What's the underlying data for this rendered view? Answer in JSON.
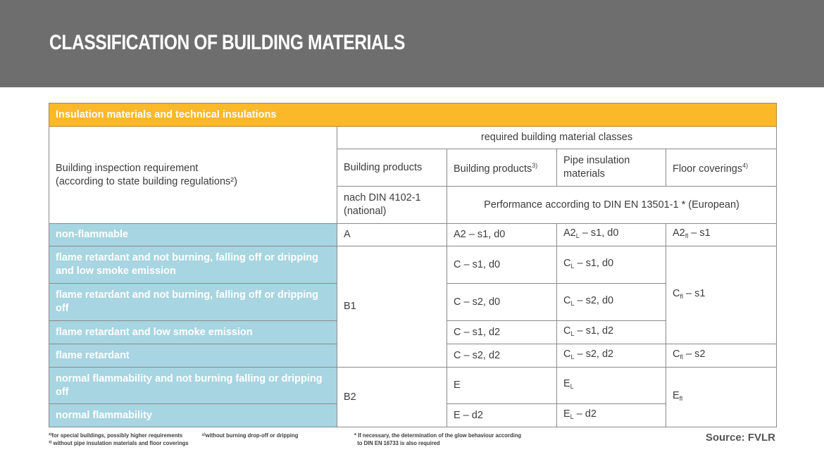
{
  "title": "CLASSIFICATION OF BUILDING MATERIALS",
  "section": "Insulation materials and technical insulations",
  "header": {
    "requirement_l1": "Building inspection requirement",
    "requirement_l2": "(according to state building regulations²)",
    "required_classes": "required building material classes",
    "col1": "Building products",
    "col2": "Building products",
    "col2_sup": "3)",
    "col3": "Pipe insulation materials",
    "col4": "Floor coverings",
    "col4_sup": "4)",
    "national": "nach DIN 4102-1 (national)",
    "european": "Performance according to DIN EN 13501-1 * (European)"
  },
  "rows": [
    {
      "label": "non-flammable",
      "nat": "A",
      "c2": "A2 – s1, d0",
      "c3b": "A2",
      "c3s": "L",
      "c3r": " – s1, d0",
      "c4b": "A2",
      "c4s": "fl",
      "c4r": " – s1"
    },
    {
      "label": "flame retardant and not burning, falling off or dripping and low smoke emission",
      "nat": "B1",
      "c2": "C – s1, d0",
      "c3b": "C",
      "c3s": "L",
      "c3r": " – s1, d0",
      "c4b": "C",
      "c4s": "fl",
      "c4r": " – s1"
    },
    {
      "label": "flame retardant and not burning, falling off or dripping off",
      "c2": "C – s2, d0",
      "c3b": "C",
      "c3s": "L",
      "c3r": " – s2, d0"
    },
    {
      "label": "flame retardant and low smoke emission",
      "c2": "C – s1, d2",
      "c3b": "C",
      "c3s": "L",
      "c3r": " – s1, d2"
    },
    {
      "label": "flame retardant",
      "c2": "C – s2, d2",
      "c3b": "C",
      "c3s": "L",
      "c3r": " – s2, d2",
      "c4b": "C",
      "c4s": "fl",
      "c4r": " – s2"
    },
    {
      "label": "normal flammability and not burning falling or dripping off",
      "nat": "B2",
      "c2": "E",
      "c3b": "E",
      "c3s": "L",
      "c3r": "",
      "c4b": "E",
      "c4s": "fl",
      "c4r": ""
    },
    {
      "label": "normal flammability",
      "c2": "E – d2",
      "c3b": "E",
      "c3s": "L",
      "c3r": " – d2"
    }
  ],
  "footnotes": {
    "f2": "²⁾for special buildings, possibly higher requirements",
    "f3": "³⁾ without pipe insulation materials and floor coverings",
    "f4": "⁴⁾without burning drop-off or dripping",
    "star1": "* If necessary, the determination of the glow behaviour according",
    "star2": "to DIN EN 16733 is also required"
  },
  "source": "Source: FVLR",
  "colors": {
    "banner": "#6e6e6e",
    "section": "#fbb829",
    "row_label": "#a7d5e1"
  }
}
